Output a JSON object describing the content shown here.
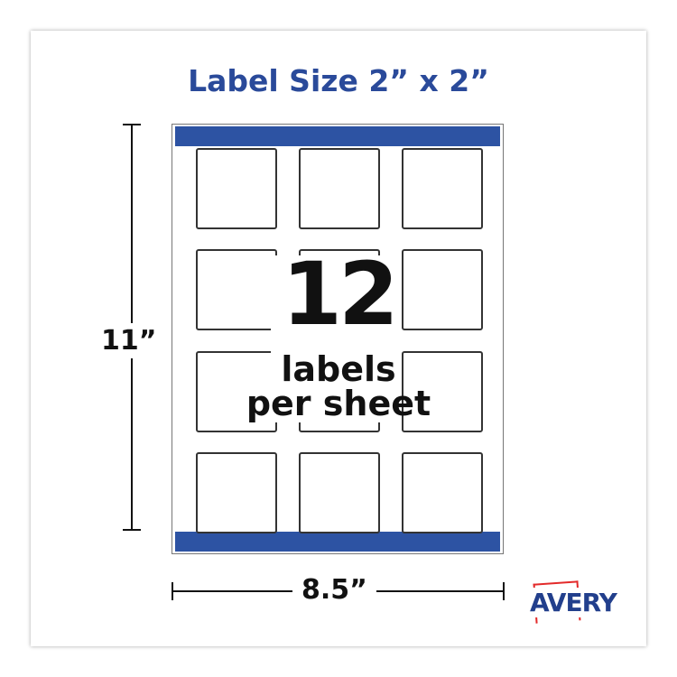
{
  "title": "Label Size 2” x 2”",
  "count": "12",
  "count_line1": "labels",
  "count_line2": "per sheet",
  "height_label": "11”",
  "width_label": "8.5”",
  "brand": "AVERY",
  "colors": {
    "accent": "#2d53a3",
    "brand_red": "#e32a2a",
    "title": "#2a4a9a"
  }
}
